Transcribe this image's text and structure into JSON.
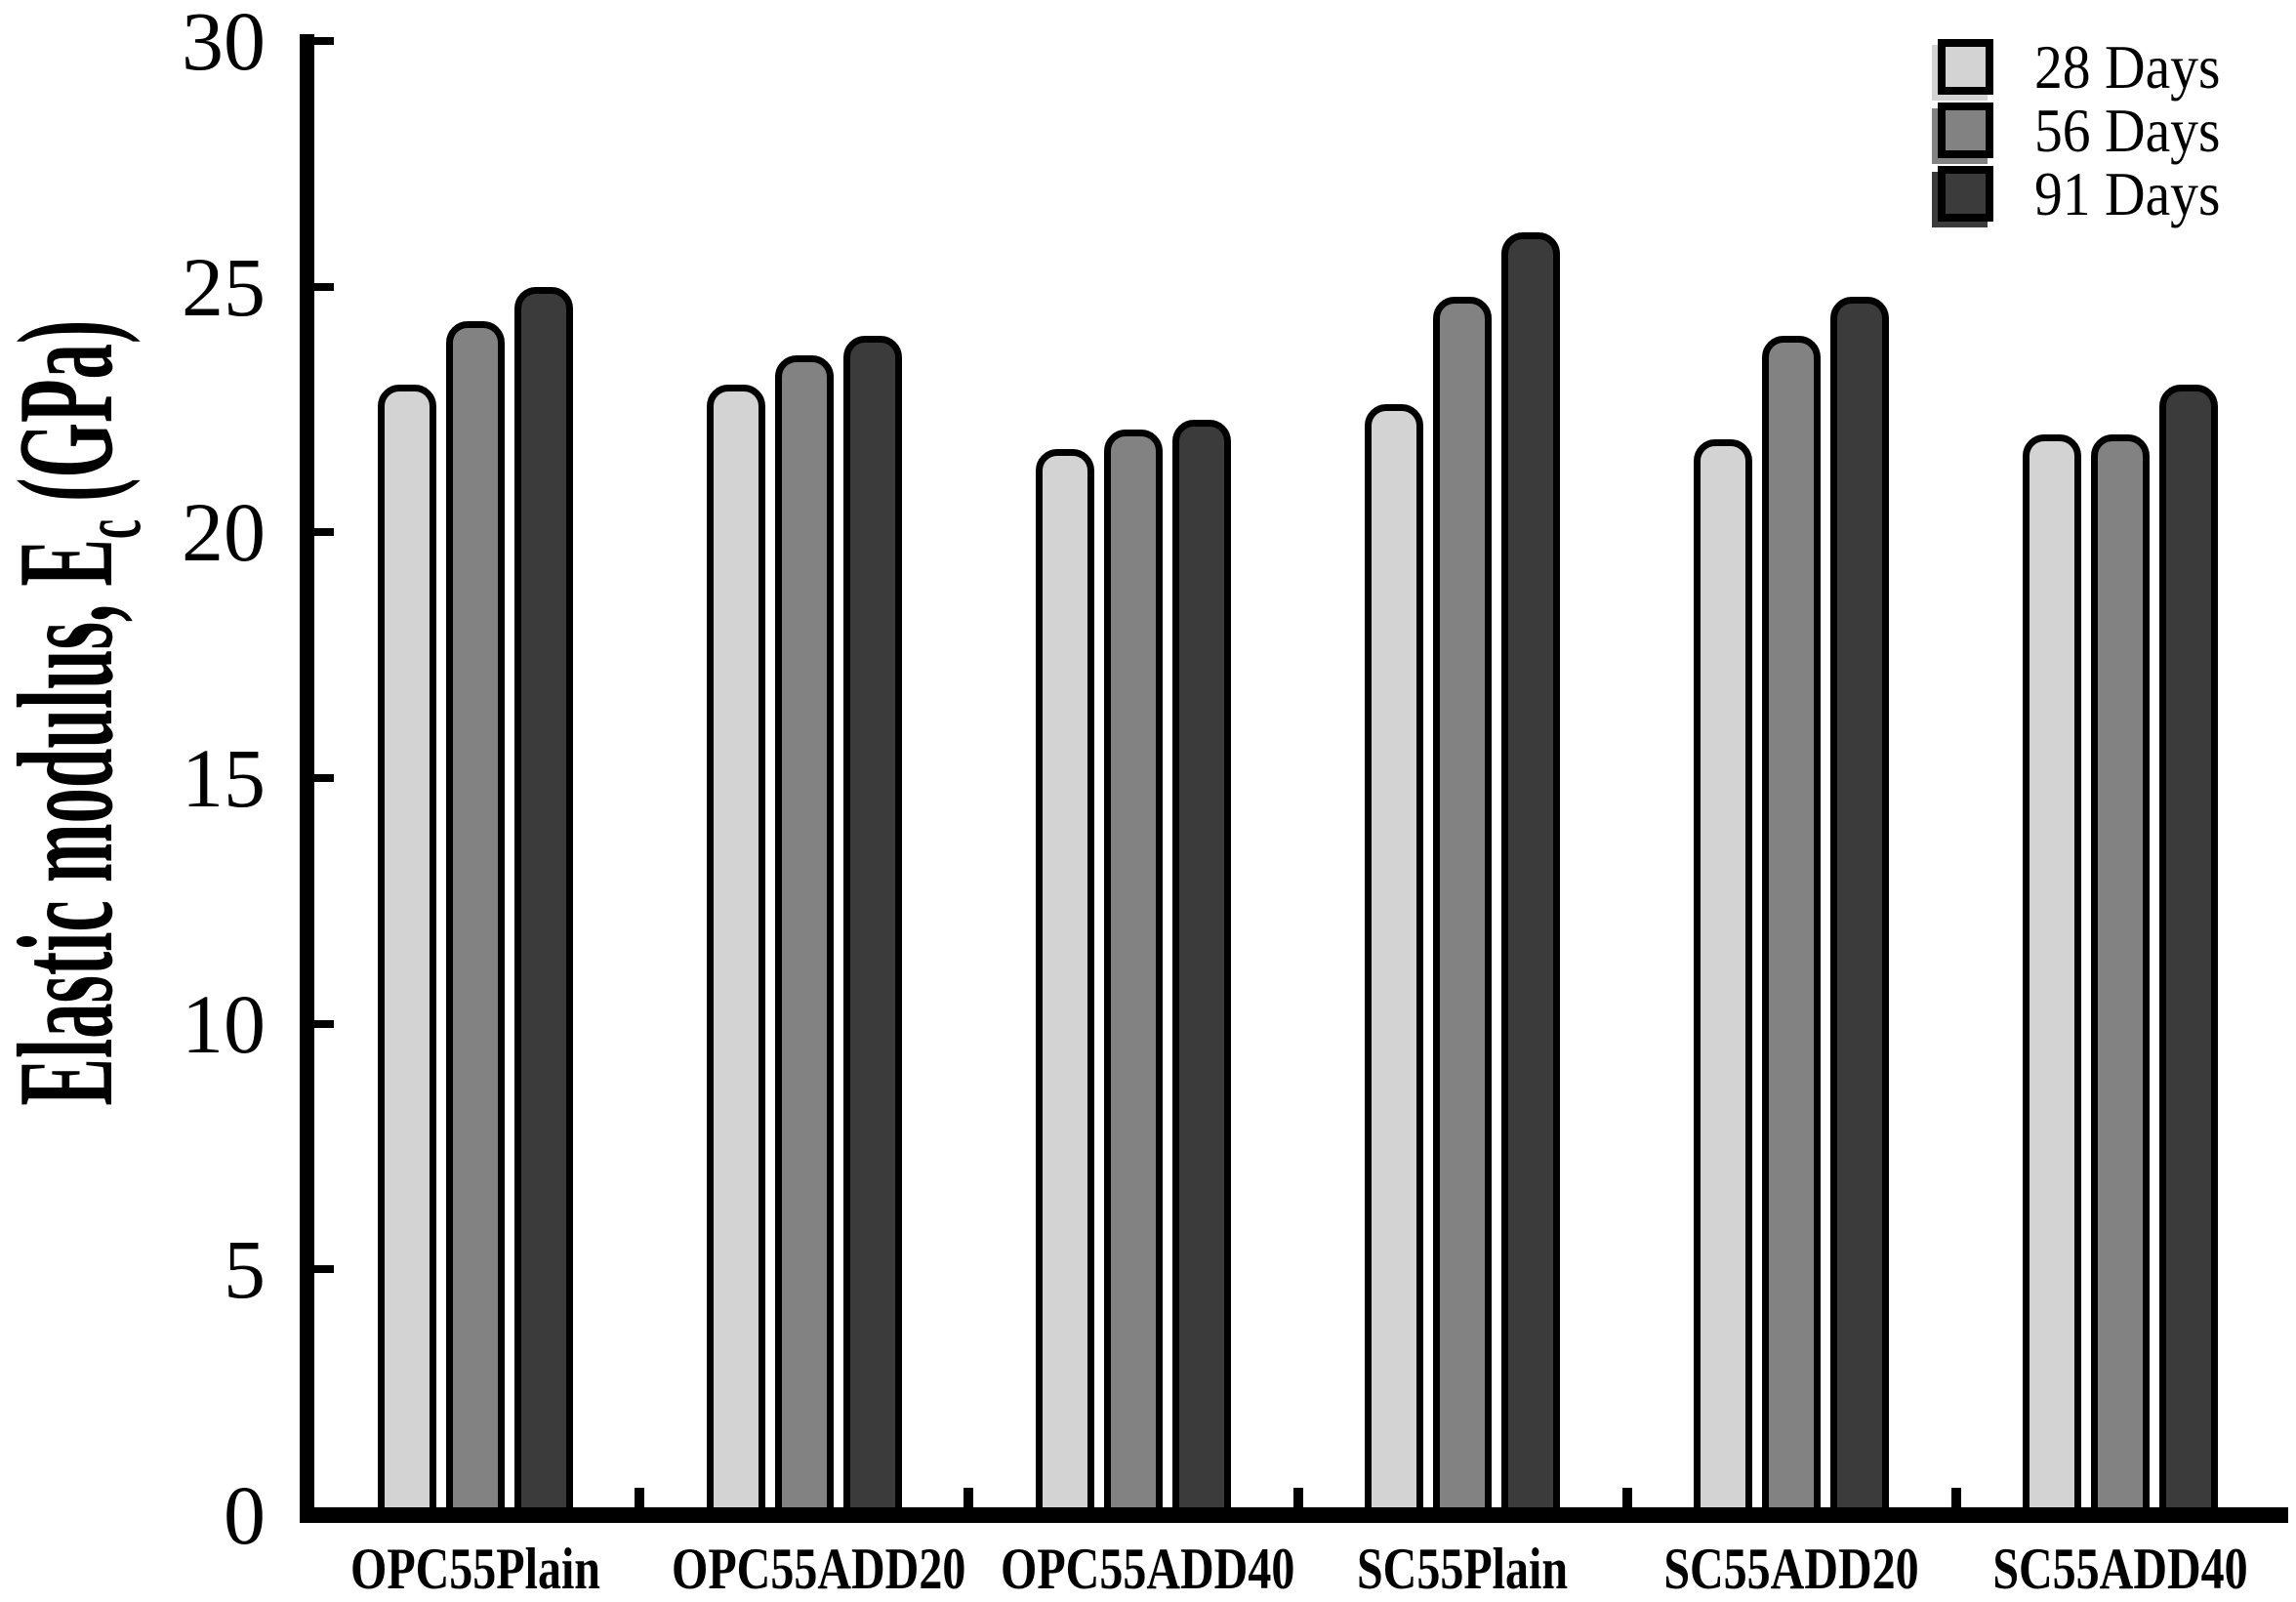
{
  "chart_data": {
    "type": "bar",
    "title": "",
    "ylabel": "Elastic modulus, Ec (GPa)",
    "ylabel_parts": {
      "main": "Elastic modulus, E",
      "sub": "c",
      "unit": " (GPa)"
    },
    "xlabel": "",
    "ylim": [
      0,
      30
    ],
    "y_ticks": [
      0,
      5,
      10,
      15,
      20,
      25,
      30
    ],
    "grid": false,
    "legend_position": "top-right",
    "categories": [
      "OPC55Plain",
      "OPC55ADD20",
      "OPC55ADD40",
      "SC55Plain",
      "SC55ADD20",
      "SC55ADD40"
    ],
    "series": [
      {
        "name": "28 Days",
        "color": "#d3d3d3",
        "values": [
          23.0,
          23.0,
          21.7,
          22.6,
          21.9,
          22.0
        ]
      },
      {
        "name": "56 Days",
        "color": "#828282",
        "values": [
          24.3,
          23.6,
          22.1,
          24.8,
          24.0,
          22.0
        ]
      },
      {
        "name": "91 Days",
        "color": "#3b3b3b",
        "values": [
          25.0,
          24.0,
          22.3,
          26.1,
          24.8,
          23.0
        ]
      }
    ]
  },
  "colors": {
    "background": "#ffffff",
    "axis": "#000000",
    "text": "#000000",
    "bar_border": "#000000"
  }
}
